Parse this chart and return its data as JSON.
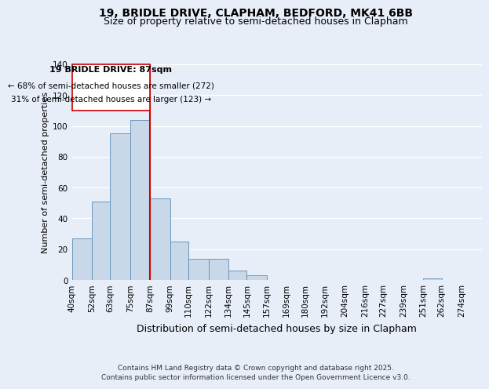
{
  "title1": "19, BRIDLE DRIVE, CLAPHAM, BEDFORD, MK41 6BB",
  "title2": "Size of property relative to semi-detached houses in Clapham",
  "xlabel": "Distribution of semi-detached houses by size in Clapham",
  "ylabel": "Number of semi-detached properties",
  "footnote1": "Contains HM Land Registry data © Crown copyright and database right 2025.",
  "footnote2": "Contains public sector information licensed under the Open Government Licence v3.0.",
  "annotation_line1": "19 BRIDLE DRIVE: 87sqm",
  "annotation_line2": "← 68% of semi-detached houses are smaller (272)",
  "annotation_line3": "31% of semi-detached houses are larger (123) →",
  "property_size": 87,
  "bin_labels": [
    "40sqm",
    "52sqm",
    "63sqm",
    "75sqm",
    "87sqm",
    "99sqm",
    "110sqm",
    "122sqm",
    "134sqm",
    "145sqm",
    "157sqm",
    "169sqm",
    "180sqm",
    "192sqm",
    "204sqm",
    "216sqm",
    "227sqm",
    "239sqm",
    "251sqm",
    "262sqm",
    "274sqm"
  ],
  "bin_edges": [
    40,
    52,
    63,
    75,
    87,
    99,
    110,
    122,
    134,
    145,
    157,
    169,
    180,
    192,
    204,
    216,
    227,
    239,
    251,
    262,
    274
  ],
  "bar_values": [
    27,
    51,
    95,
    104,
    53,
    25,
    14,
    14,
    6,
    3,
    0,
    0,
    0,
    0,
    0,
    0,
    0,
    0,
    1,
    0,
    0
  ],
  "bar_color": "#c8d8e8",
  "bar_edge_color": "#5b8db8",
  "highlight_color": "#cc0000",
  "ylim": [
    0,
    140
  ],
  "yticks": [
    0,
    20,
    40,
    60,
    80,
    100,
    120,
    140
  ],
  "bg_color": "#e8eef8",
  "title1_fontsize": 10,
  "title2_fontsize": 9,
  "annotation_fontsize": 8,
  "xlabel_fontsize": 9,
  "ylabel_fontsize": 8,
  "tick_fontsize": 7.5,
  "footnote_fontsize": 6.5
}
